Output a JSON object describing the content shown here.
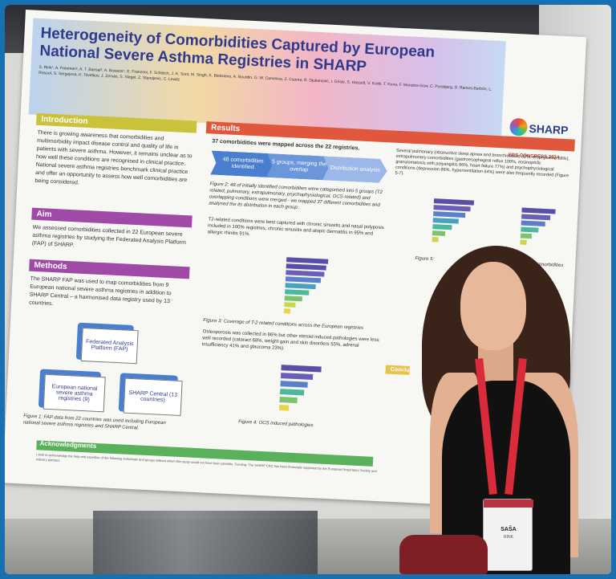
{
  "poster": {
    "title": "Heterogeneity of Comorbidities Captured by European National Severe Asthma Registries in SHARP",
    "authors": "S. Rink¹, A. Freeman², A. T. Bansal³, A. Bossios⁴, E. Franzoni, F. Schleich, J. K. Sont, M. Singh, K. Bieksiene, A. Bourdin, G. W. Canonica, Z. Csoma, R. Djukanović, I. Grisle, S. Hasselt, V. Kurbi, T. Kuna, F. Menzies-Gow, C. Porsbjerg, D. Ramos-Barbón, L. Rosoof, S. Sergejeva, K. Tsvetkov, J. Zervas, S. Siegel, Z. Stanojevic, C. Lewitz",
    "logo": {
      "name": "SHARP",
      "event": "ERS CONGRESS 2024"
    },
    "introduction": {
      "heading": "Introduction",
      "text": "There is growing awareness that comorbidities and multimorbidity impact disease control and quality of life in patients with severe asthma. However, it remains unclear as to how well these conditions are recognised in clinical practice. National severe asthma registries benchmark clinical practice and offer an opportunity to assess how well comorbidities are being considered."
    },
    "aim": {
      "heading": "Aim",
      "text": "We assessed comorbidities collected in 22 European severe asthma registries by studying the Federated Analysis Platform (FAP) of SHARP."
    },
    "methods": {
      "heading": "Methods",
      "text": "The SHARP FAP was used to map comorbidities from 9 European national severe asthma registries in addition to SHARP Central – a harmonised data registry used by 13 countries.",
      "fap_box": "Federated Analysis Platform (FAP)",
      "box_left": "European national severe asthma registries (9)",
      "box_right": "SHARP Central (13 countries)",
      "figure_caption": "Figure 1: FAP data from 22 countries was used including European national severe asthma registries and SHARP Central."
    },
    "results": {
      "heading": "Results",
      "bullet1": "37 comorbidities were mapped across the 22 registries.",
      "chevrons": [
        "48 comorbidities identified",
        "5 groups, merging the overlap",
        "Distribution analysis"
      ],
      "figure2_caption": "Figure 2: 48 of initially identified comorbidities were categorised into 5 groups (T2 related, pulmonary, extrapulmonary, psychophysiological, OCS-related) and overlapping conditions were merged - we mapped 37 different comorbidities and analysed the its distribution in each group.",
      "bullet2": "T2-related conditions were best captured with chronic sinusitis and nasal polyposis included in 100% registries, chronic sinusitis and atopic dermatitis in 95% and allergic rhinitis 91%.",
      "figure3_caption": "Figure 3: Coverage of T-2 related conditions across the European registries",
      "bullet3": "Osteoporosis was collected in 86% but other steroid induced pathologies were less well recorded (cataract 68%, weight gain and skin disorders 55%, adrenal insufficiency 41% and glaucoma 23%).",
      "figure4_caption": "Figure 4: OCS induced pathologies",
      "right_text": "Several pulmonary (obstructive sleep apnea and bronchiectasis 82%, emphysema 68%), extrapulmonary comorbidities (gastroesophageal reflux 100%, eosinophilic granulomatosis with polyangiitis 86%, heart failure 77%) and psychophysiological conditions (depression 86%, hyperventilation 64%) were also frequently recorded (Figure 5-7).",
      "figure5_caption": "Figure 5:",
      "figure_right_caption": "pulmonary comorbidities"
    },
    "conclusion_heading": "Conclu",
    "acknowledgments": {
      "heading": "Acknowledgments",
      "text": "I wish to acknowledge the help and expertise of the following individuals and groups without whom this study would not have been possible. Funding: The SHARP CRC has been financially supported by the European Respiratory Society and industry partners."
    }
  },
  "badge": {
    "name": "SAŠA",
    "surname": "RINK"
  },
  "colors": {
    "frame": "#1a6fb0",
    "poster_title": "#2f3a8c",
    "intro_head": "#c9c23a",
    "aim_head": "#a04aa8",
    "methods_head": "#a04aa8",
    "results_head": "#e1573e",
    "ack_head": "#5bb05b",
    "lanyard": "#d92b3a"
  }
}
